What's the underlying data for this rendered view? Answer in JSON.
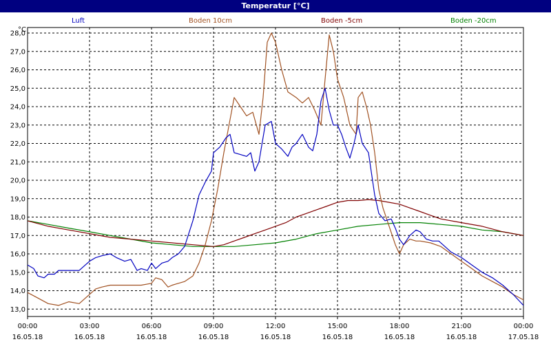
{
  "chart_data": {
    "type": "line",
    "title": "Temperatur [°C]",
    "ylabel": "°C",
    "xlabel": "",
    "grid": true,
    "legend_placement": "top",
    "ylim": [
      12.6,
      28.3
    ],
    "y_ticks": [
      13.0,
      14.0,
      15.0,
      16.0,
      17.0,
      18.0,
      19.0,
      20.0,
      21.0,
      22.0,
      23.0,
      24.0,
      25.0,
      26.0,
      27.0,
      28.0
    ],
    "y_tick_labels": [
      "13,0",
      "14,0",
      "15,0",
      "16,0",
      "17,0",
      "18,0",
      "19,0",
      "20,0",
      "21,0",
      "22,0",
      "23,0",
      "24,0",
      "25,0",
      "26,0",
      "27,0",
      "28,0"
    ],
    "xlim": [
      0,
      24
    ],
    "x_ticks": [
      0,
      3,
      6,
      9,
      12,
      15,
      18,
      21,
      24
    ],
    "x_tick_time_labels": [
      "00:00",
      "03:00",
      "06:00",
      "09:00",
      "12:00",
      "15:00",
      "18:00",
      "21:00",
      "00:00"
    ],
    "x_tick_date_labels": [
      "16.05.18",
      "16.05.18",
      "16.05.18",
      "16.05.18",
      "16.05.18",
      "16.05.18",
      "16.05.18",
      "16.05.18",
      "17.05.18"
    ],
    "series": [
      {
        "name": "Luft",
        "color": "#0000c0",
        "x": [
          0,
          0.3,
          0.5,
          0.8,
          1.0,
          1.3,
          1.5,
          2.0,
          2.5,
          3.0,
          3.3,
          3.6,
          4.0,
          4.3,
          4.7,
          5.0,
          5.3,
          5.5,
          5.8,
          6.0,
          6.2,
          6.5,
          6.8,
          7.0,
          7.3,
          7.6,
          8.0,
          8.3,
          8.6,
          8.9,
          9.0,
          9.3,
          9.6,
          9.8,
          10.0,
          10.3,
          10.6,
          10.8,
          11.0,
          11.2,
          11.5,
          11.8,
          12.0,
          12.3,
          12.6,
          12.8,
          13.0,
          13.3,
          13.6,
          13.8,
          14.0,
          14.2,
          14.4,
          14.6,
          14.8,
          15.0,
          15.2,
          15.4,
          15.6,
          15.8,
          16.0,
          16.2,
          16.5,
          16.8,
          17.0,
          17.3,
          17.6,
          17.8,
          18.0,
          18.2,
          18.5,
          18.8,
          19.0,
          19.3,
          19.6,
          19.9,
          20.2,
          20.5,
          21.0,
          21.5,
          22.0,
          22.5,
          23.0,
          23.5,
          24.0
        ],
        "values": [
          15.4,
          15.2,
          14.8,
          14.7,
          14.9,
          14.9,
          15.1,
          15.1,
          15.1,
          15.6,
          15.8,
          15.9,
          16.0,
          15.8,
          15.6,
          15.7,
          15.1,
          15.2,
          15.1,
          15.5,
          15.2,
          15.5,
          15.6,
          15.8,
          16.0,
          16.4,
          17.8,
          19.2,
          19.9,
          20.5,
          21.5,
          21.8,
          22.3,
          22.5,
          21.5,
          21.4,
          21.3,
          21.5,
          20.5,
          21.0,
          23.0,
          23.2,
          22.0,
          21.7,
          21.3,
          21.8,
          22.0,
          22.5,
          21.8,
          21.6,
          22.5,
          24.3,
          25.0,
          23.8,
          23.0,
          23.0,
          22.5,
          21.8,
          21.2,
          22.0,
          23.0,
          22.0,
          21.5,
          19.2,
          18.2,
          17.8,
          17.9,
          17.4,
          16.8,
          16.5,
          17.0,
          17.3,
          17.2,
          16.8,
          16.7,
          16.7,
          16.4,
          16.1,
          15.8,
          15.4,
          15.0,
          14.7,
          14.3,
          13.8,
          13.2
        ]
      },
      {
        "name": "Boden 10cm",
        "color": "#a05020",
        "x": [
          0,
          0.5,
          1.0,
          1.5,
          2.0,
          2.5,
          3.0,
          3.3,
          3.6,
          4.0,
          4.5,
          5.0,
          5.5,
          6.0,
          6.2,
          6.5,
          6.8,
          7.0,
          7.3,
          7.6,
          8.0,
          8.3,
          8.6,
          8.9,
          9.2,
          9.5,
          9.8,
          10.0,
          10.3,
          10.6,
          10.9,
          11.2,
          11.4,
          11.6,
          11.8,
          12.0,
          12.3,
          12.6,
          13.0,
          13.3,
          13.6,
          13.9,
          14.2,
          14.4,
          14.6,
          14.8,
          15.0,
          15.3,
          15.6,
          15.9,
          16.0,
          16.2,
          16.4,
          16.6,
          16.8,
          17.0,
          17.2,
          17.5,
          17.8,
          18.0,
          18.2,
          18.5,
          18.8,
          19.0,
          19.5,
          20.0,
          20.5,
          21.0,
          21.5,
          22.0,
          22.5,
          23.0,
          23.5,
          24.0
        ],
        "values": [
          13.9,
          13.6,
          13.3,
          13.2,
          13.4,
          13.3,
          13.8,
          14.1,
          14.2,
          14.3,
          14.3,
          14.3,
          14.3,
          14.4,
          14.7,
          14.6,
          14.2,
          14.3,
          14.4,
          14.5,
          14.8,
          15.5,
          16.5,
          17.8,
          19.5,
          21.5,
          23.3,
          24.5,
          24.0,
          23.5,
          23.7,
          22.5,
          24.5,
          27.5,
          28.0,
          27.5,
          26.0,
          24.8,
          24.5,
          24.2,
          24.5,
          23.8,
          23.0,
          25.5,
          27.9,
          27.0,
          25.5,
          24.5,
          23.0,
          22.5,
          24.5,
          24.8,
          24.0,
          23.0,
          21.5,
          19.5,
          18.5,
          17.5,
          16.5,
          16.0,
          16.5,
          16.8,
          16.7,
          16.7,
          16.6,
          16.4,
          16.0,
          15.6,
          15.2,
          14.8,
          14.5,
          14.2,
          13.8,
          13.5
        ]
      },
      {
        "name": "Boden -5cm",
        "color": "#800000",
        "x": [
          0,
          1,
          2,
          3,
          4,
          5,
          6,
          7,
          8,
          9,
          9.5,
          10,
          10.5,
          11,
          11.5,
          12,
          12.5,
          13,
          13.5,
          14,
          14.5,
          15,
          15.5,
          16,
          16.5,
          17,
          17.5,
          18,
          18.5,
          19,
          19.5,
          20,
          21,
          22,
          23,
          24
        ],
        "values": [
          17.8,
          17.5,
          17.3,
          17.1,
          16.9,
          16.8,
          16.7,
          16.6,
          16.5,
          16.4,
          16.5,
          16.7,
          16.9,
          17.1,
          17.3,
          17.5,
          17.7,
          18.0,
          18.2,
          18.4,
          18.6,
          18.8,
          18.9,
          18.9,
          18.95,
          18.9,
          18.8,
          18.7,
          18.5,
          18.3,
          18.1,
          17.9,
          17.7,
          17.5,
          17.2,
          17.0
        ]
      },
      {
        "name": "Boden -20cm",
        "color": "#008000",
        "x": [
          0,
          1,
          2,
          3,
          4,
          5,
          6,
          7,
          8,
          9,
          10,
          11,
          12,
          13,
          14,
          15,
          16,
          17,
          18,
          19,
          20,
          21,
          22,
          23,
          24
        ],
        "values": [
          17.8,
          17.6,
          17.4,
          17.2,
          17.0,
          16.8,
          16.6,
          16.5,
          16.4,
          16.4,
          16.4,
          16.5,
          16.6,
          16.8,
          17.1,
          17.3,
          17.5,
          17.6,
          17.7,
          17.7,
          17.6,
          17.5,
          17.3,
          17.2,
          17.0
        ]
      }
    ]
  }
}
